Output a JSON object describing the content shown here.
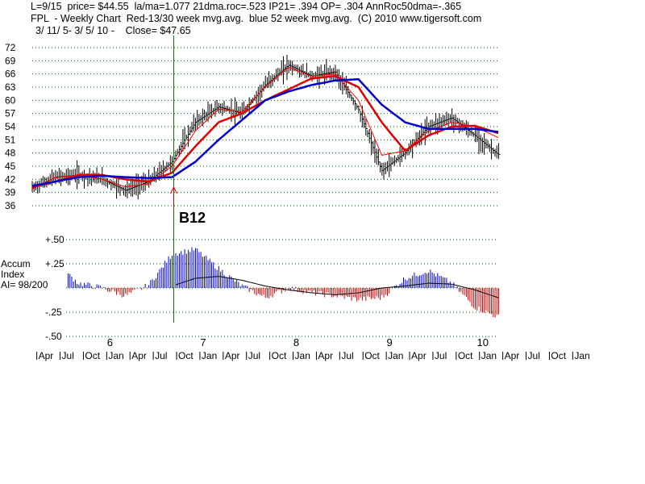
{
  "header": {
    "line1": "L=9/15  price= $44.55  la/ma=1.077 21dma.roc=.523 IP21= .394 OP= .304 AnnRoc50dma=-.365",
    "line2": "FPL  - Weekly Chart  Red-13/30 week mvg.avg.  blue 52 week mvg.avg.  (C) 2010 www.tigersoft.com",
    "line3": "3/ 11/ 5- 3/ 5/ 10 -    Close= $47.65"
  },
  "accum_label": {
    "line1": "Accum",
    "line2": "Index",
    "line3": "AI= 98/200"
  },
  "signal": {
    "label": "B12"
  },
  "colors": {
    "grid": "#006400",
    "price_bars": "#000000",
    "ma13": "#ff0000",
    "ma30": "#dd0000",
    "ma52": "#0000cc",
    "accum_positive": "#0000cc",
    "accum_negative": "#cc0000",
    "accum_ma": "#000000",
    "signal_line": "#008000",
    "signal_arrow": "#cc0000"
  },
  "chart_data": [
    {
      "type": "line",
      "title": "FPL - Weekly Chart",
      "y_ticks": [
        "72",
        "69",
        "66",
        "63",
        "60",
        "57",
        "54",
        "51",
        "48",
        "45",
        "42",
        "39",
        "36"
      ],
      "ylim": [
        36,
        72
      ],
      "x_year_labels": [
        "6",
        "7",
        "8",
        "9",
        "10"
      ],
      "x_month_labels": [
        "Apr",
        "Jul",
        "Oct",
        "Jan",
        "Apr",
        "Jul",
        "Oct",
        "Jan",
        "Apr",
        "Jul",
        "Oct",
        "Jan",
        "Apr",
        "Jul",
        "Oct",
        "Jan",
        "Apr",
        "Jul",
        "Oct",
        "Jan",
        "Apr",
        "Jul",
        "Oct",
        "Jan"
      ],
      "grid": "horizontal dotted",
      "x_dates": [
        "2005-03",
        "2005-06",
        "2005-09",
        "2005-12",
        "2006-03",
        "2006-06",
        "2006-09",
        "2006-12",
        "2007-03",
        "2007-06",
        "2007-09",
        "2007-12",
        "2008-03",
        "2008-06",
        "2008-09",
        "2008-12",
        "2009-03",
        "2009-06",
        "2009-09",
        "2009-12",
        "2010-03"
      ],
      "series": [
        {
          "name": "Red-13 week mvg.avg.",
          "values": [
            39.8,
            42.4,
            43.0,
            42.0,
            40.3,
            41.0,
            45.0,
            53.0,
            58.0,
            57.4,
            63.0,
            67.5,
            65.5,
            66.0,
            60.0,
            47.5,
            48.5,
            53.0,
            55.0,
            54.0,
            51.5
          ]
        },
        {
          "name": "Red-30 week mvg.avg.",
          "values": [
            40.2,
            41.5,
            43.0,
            43.0,
            42.0,
            41.5,
            43.5,
            49.5,
            55.0,
            57.0,
            60.0,
            62.5,
            65.0,
            65.5,
            63.0,
            55.0,
            48.5,
            52.0,
            54.0,
            54.2,
            52.5
          ]
        },
        {
          "name": "blue 52 week mvg.avg.",
          "values": [
            40.5,
            41.5,
            42.5,
            42.8,
            42.5,
            42.3,
            42.5,
            46.0,
            51.0,
            55.5,
            60.0,
            62.0,
            63.5,
            64.5,
            64.8,
            59.0,
            55.0,
            53.5,
            53.5,
            53.5,
            52.8
          ]
        }
      ],
      "ohlc_close_approx": [
        40.0,
        42.5,
        43.0,
        42.0,
        39.5,
        41.5,
        46.0,
        55.0,
        58.5,
        57.0,
        63.5,
        68.0,
        65.5,
        66.5,
        58.0,
        44.0,
        48.0,
        54.0,
        56.0,
        52.0,
        47.65
      ]
    },
    {
      "type": "bar",
      "title": "Accum Index",
      "y_ticks": [
        "+.50",
        "+.25",
        "-.25",
        "-.50"
      ],
      "ylim": [
        -0.5,
        0.5
      ],
      "x_dates": [
        "2005-03",
        "2005-06",
        "2005-09",
        "2005-12",
        "2006-03",
        "2006-06",
        "2006-09",
        "2006-12",
        "2007-03",
        "2007-06",
        "2007-09",
        "2007-12",
        "2008-03",
        "2008-06",
        "2008-09",
        "2008-12",
        "2009-03",
        "2009-06",
        "2009-09",
        "2009-12",
        "2010-03"
      ],
      "series": [
        {
          "name": "Accum Index",
          "values": [
            0.05,
            0.25,
            0.05,
            0.0,
            -0.08,
            0.03,
            0.35,
            0.4,
            0.2,
            0.02,
            -0.1,
            0.0,
            -0.05,
            -0.08,
            -0.12,
            -0.1,
            0.1,
            0.18,
            0.05,
            -0.2,
            -0.3
          ]
        }
      ]
    }
  ]
}
